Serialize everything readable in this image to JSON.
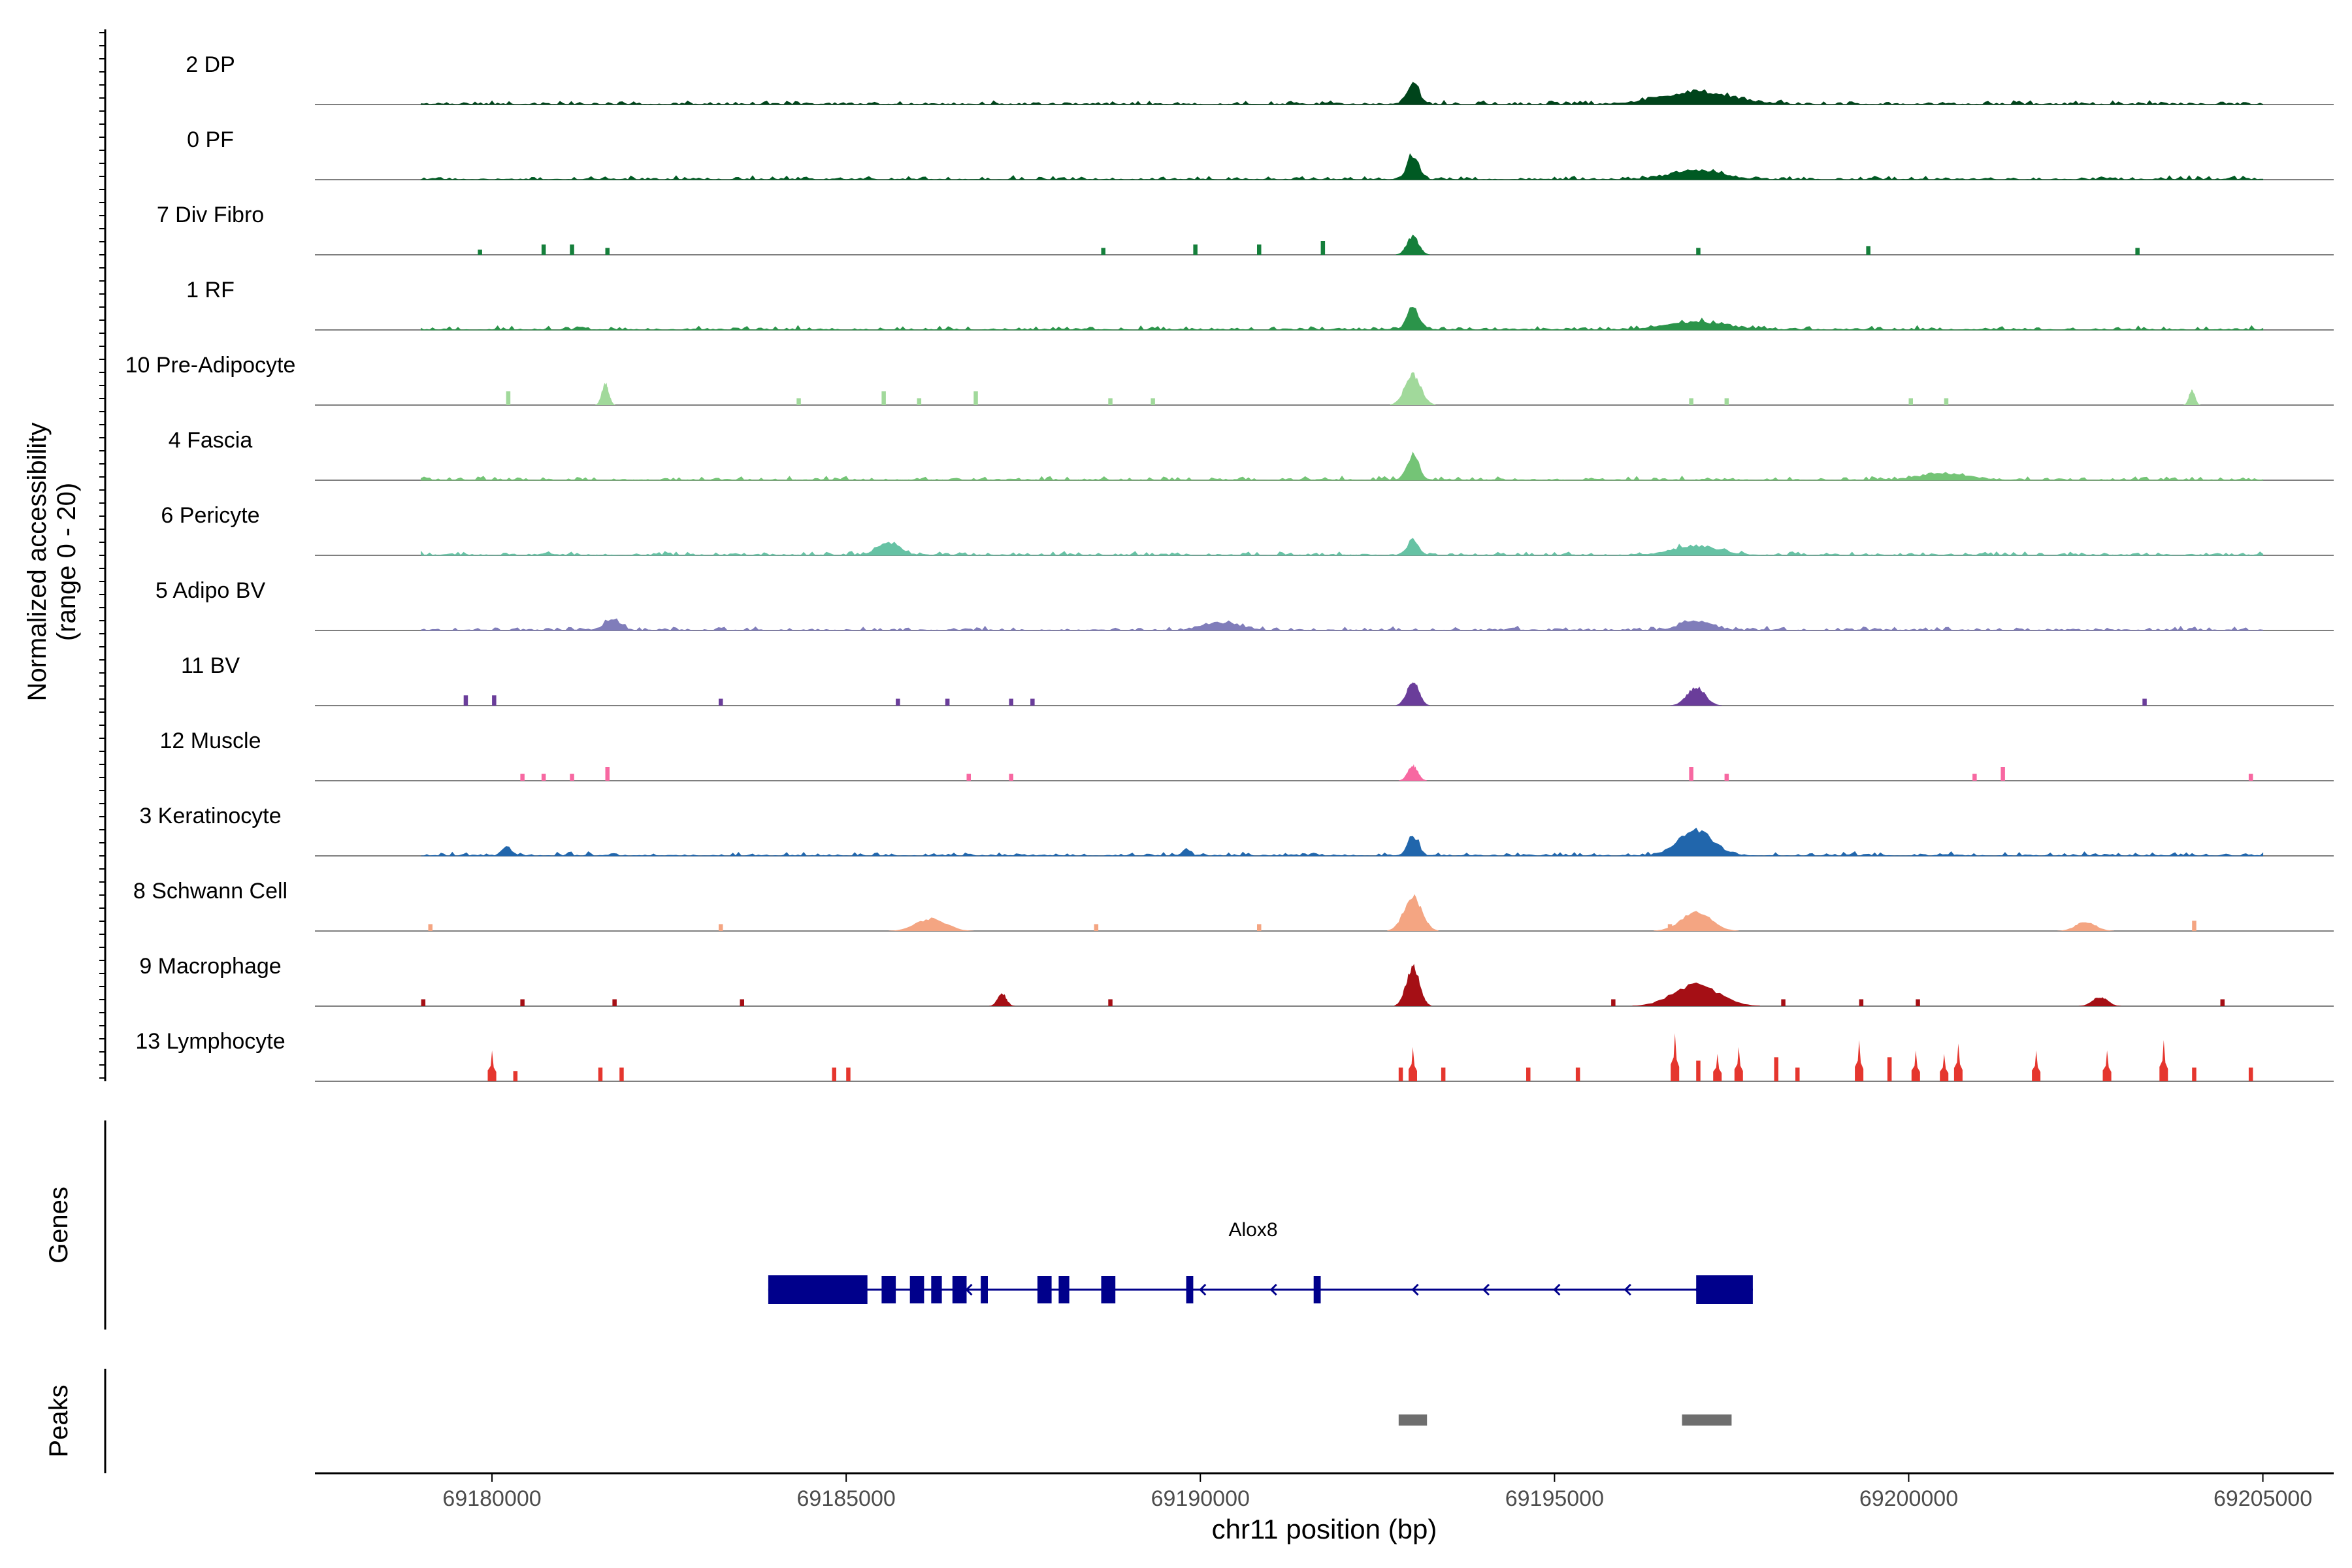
{
  "chart_data": {
    "type": "area",
    "title": "",
    "chromosome": "chr11",
    "xlabel": "chr11 position (bp)",
    "xlim": [
      69177500,
      69206000
    ],
    "xticks": [
      69180000,
      69185000,
      69190000,
      69195000,
      69200000,
      69205000
    ],
    "xtick_labels": [
      "69180000",
      "69185000",
      "69190000",
      "69195000",
      "69200000",
      "69205000"
    ],
    "ylabel_line1": "Normalized accessibility",
    "ylabel_line2": "(range 0 - 20)",
    "ylim": [
      0,
      20
    ],
    "series": [
      {
        "name": "2 DP",
        "color": "#00441b",
        "style": "dense",
        "peaks": [
          [
            69193000,
            7,
            120
          ],
          [
            69197000,
            4,
            700
          ]
        ],
        "blocks": []
      },
      {
        "name": "0 PF",
        "color": "#005a23",
        "style": "dense",
        "peaks": [
          [
            69193000,
            8,
            110
          ],
          [
            69197000,
            3,
            500
          ]
        ],
        "blocks": []
      },
      {
        "name": "7 Div Fibro",
        "color": "#157f3b",
        "style": "sparse",
        "peaks": [
          [
            69193000,
            6,
            120
          ]
        ],
        "blocks": [
          [
            69179800,
            1.5
          ],
          [
            69180700,
            3
          ],
          [
            69181100,
            3
          ],
          [
            69181600,
            2
          ],
          [
            69188600,
            2
          ],
          [
            69189900,
            3
          ],
          [
            69190800,
            3
          ],
          [
            69191700,
            4
          ],
          [
            69197000,
            2
          ],
          [
            69199400,
            2.5
          ],
          [
            69203200,
            2
          ]
        ]
      },
      {
        "name": "1 RF",
        "color": "#2b944a",
        "style": "dense",
        "peaks": [
          [
            69193000,
            7,
            120
          ],
          [
            69197000,
            2.5,
            600
          ]
        ],
        "blocks": []
      },
      {
        "name": "10 Pre-Adipocyte",
        "color": "#a1d99b",
        "style": "sparse",
        "peaks": [
          [
            69193000,
            10,
            160
          ],
          [
            69181600,
            7,
            70
          ],
          [
            69204000,
            5,
            60
          ]
        ],
        "blocks": [
          [
            69180200,
            4
          ],
          [
            69184300,
            2
          ],
          [
            69185500,
            4
          ],
          [
            69186000,
            2
          ],
          [
            69186800,
            4
          ],
          [
            69188700,
            2
          ],
          [
            69189300,
            2
          ],
          [
            69196900,
            2
          ],
          [
            69197400,
            2
          ],
          [
            69200000,
            2
          ],
          [
            69200500,
            2
          ]
        ]
      },
      {
        "name": "4 Fascia",
        "color": "#74c476",
        "style": "dense",
        "peaks": [
          [
            69193000,
            8,
            120
          ],
          [
            69200500,
            2,
            500
          ]
        ],
        "blocks": []
      },
      {
        "name": "6 Pericyte",
        "color": "#66c2a4",
        "style": "dense",
        "peaks": [
          [
            69193000,
            5,
            110
          ],
          [
            69185600,
            4,
            220
          ],
          [
            69197000,
            3,
            450
          ]
        ],
        "blocks": []
      },
      {
        "name": "5 Adipo BV",
        "color": "#807dba",
        "style": "dense",
        "peaks": [
          [
            69181700,
            4,
            150
          ],
          [
            69190300,
            2.5,
            350
          ],
          [
            69197000,
            3,
            300
          ]
        ],
        "blocks": []
      },
      {
        "name": "11 BV",
        "color": "#6a3d9a",
        "style": "sparse",
        "peaks": [
          [
            69193000,
            8,
            120
          ],
          [
            69197000,
            6,
            180
          ]
        ],
        "blocks": [
          [
            69179600,
            3
          ],
          [
            69180000,
            3
          ],
          [
            69183200,
            2
          ],
          [
            69185700,
            2
          ],
          [
            69186400,
            2
          ],
          [
            69187300,
            2
          ],
          [
            69187600,
            2
          ],
          [
            69203300,
            2
          ]
        ]
      },
      {
        "name": "12 Muscle",
        "color": "#f768a1",
        "style": "sparse",
        "peaks": [
          [
            69193000,
            5,
            100
          ]
        ],
        "blocks": [
          [
            69180400,
            2
          ],
          [
            69180700,
            2
          ],
          [
            69181100,
            2
          ],
          [
            69181600,
            4
          ],
          [
            69186700,
            2
          ],
          [
            69187300,
            2
          ],
          [
            69196900,
            4
          ],
          [
            69197400,
            2
          ],
          [
            69200900,
            2
          ],
          [
            69201300,
            4
          ],
          [
            69204800,
            2
          ]
        ]
      },
      {
        "name": "3 Keratinocyte",
        "color": "#2166ac",
        "style": "dense",
        "peaks": [
          [
            69193000,
            6,
            110
          ],
          [
            69197000,
            8,
            350
          ],
          [
            69180200,
            3,
            80
          ],
          [
            69189800,
            2,
            80
          ]
        ],
        "blocks": []
      },
      {
        "name": "8 Schwann Cell",
        "color": "#f4a582",
        "style": "sparse",
        "peaks": [
          [
            69193000,
            11,
            180
          ],
          [
            69197000,
            6,
            300
          ],
          [
            69186200,
            4,
            300
          ],
          [
            69202500,
            3,
            200
          ]
        ],
        "blocks": [
          [
            69179100,
            2
          ],
          [
            69183200,
            2
          ],
          [
            69188500,
            2
          ],
          [
            69190800,
            2
          ],
          [
            69196600,
            2
          ],
          [
            69204000,
            3
          ]
        ]
      },
      {
        "name": "9 Macrophage",
        "color": "#a50f15",
        "style": "sparse",
        "peaks": [
          [
            69193000,
            13,
            130
          ],
          [
            69197000,
            7,
            450
          ],
          [
            69187200,
            4,
            90
          ],
          [
            69202700,
            3,
            150
          ]
        ],
        "blocks": [
          [
            69179000,
            2
          ],
          [
            69180400,
            2
          ],
          [
            69181700,
            2
          ],
          [
            69183500,
            2
          ],
          [
            69188700,
            2
          ],
          [
            69195800,
            2
          ],
          [
            69198200,
            2
          ],
          [
            69199300,
            2
          ],
          [
            69200100,
            2
          ],
          [
            69204400,
            2
          ]
        ]
      },
      {
        "name": "13 Lymphocyte",
        "color": "#e5362e",
        "style": "spiky",
        "peaks": [],
        "blocks": [
          [
            69180000,
            9
          ],
          [
            69180300,
            3
          ],
          [
            69181500,
            4
          ],
          [
            69181800,
            4
          ],
          [
            69184800,
            4
          ],
          [
            69185000,
            4
          ],
          [
            69192800,
            4
          ],
          [
            69193000,
            10
          ],
          [
            69193400,
            4
          ],
          [
            69194600,
            4
          ],
          [
            69195300,
            4
          ],
          [
            69196700,
            14
          ],
          [
            69197000,
            6
          ],
          [
            69197300,
            8
          ],
          [
            69197600,
            10
          ],
          [
            69198100,
            7
          ],
          [
            69198400,
            4
          ],
          [
            69199300,
            12
          ],
          [
            69199700,
            7
          ],
          [
            69200100,
            9
          ],
          [
            69200500,
            8
          ],
          [
            69200700,
            11
          ],
          [
            69201800,
            9
          ],
          [
            69202800,
            9
          ],
          [
            69203600,
            12
          ],
          [
            69204000,
            4
          ],
          [
            69204800,
            4
          ]
        ]
      }
    ],
    "genes_label": "Genes",
    "gene": {
      "name": "Alox8",
      "strand": "-",
      "start": 69183900,
      "end": 69197800,
      "exons": [
        [
          69183900,
          69185300
        ],
        [
          69185500,
          69185700
        ],
        [
          69185900,
          69186100
        ],
        [
          69186200,
          69186350
        ],
        [
          69186500,
          69186700
        ],
        [
          69186900,
          69187000
        ],
        [
          69187700,
          69187900
        ],
        [
          69188000,
          69188150
        ],
        [
          69188600,
          69188800
        ],
        [
          69189800,
          69189900
        ],
        [
          69191600,
          69191700
        ],
        [
          69197000,
          69197800
        ]
      ],
      "arrows": [
        69186700,
        69190000,
        69191000,
        69193000,
        69194000,
        69195000,
        69196000,
        69197000
      ]
    },
    "peaks_label": "Peaks",
    "peak_regions": [
      [
        69192800,
        69193200
      ],
      [
        69196800,
        69197500
      ]
    ]
  }
}
